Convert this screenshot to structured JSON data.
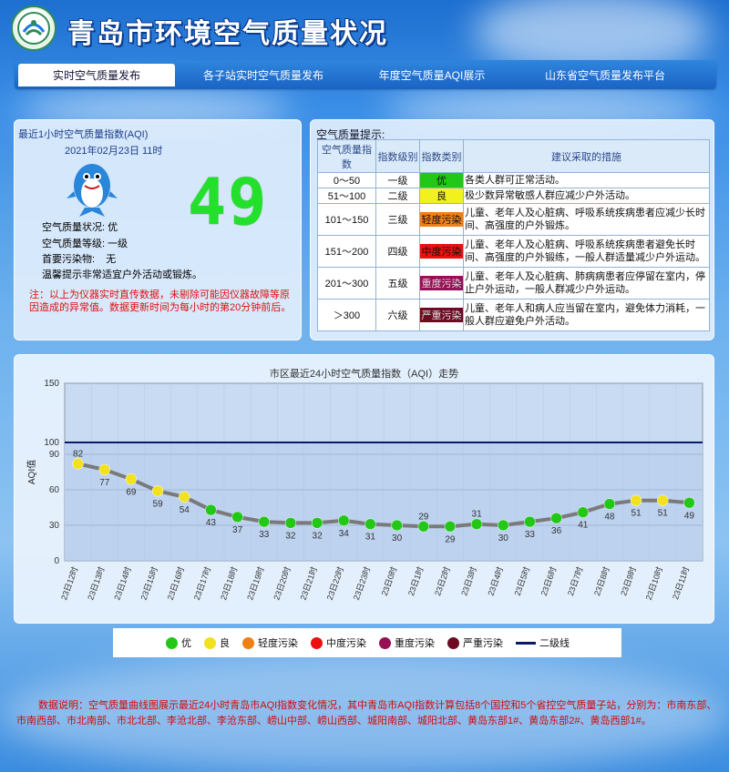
{
  "site": {
    "title": "青岛市环境空气质量状况"
  },
  "nav": {
    "tabs": [
      "实时空气质量发布",
      "各子站实时空气质量发布",
      "年度空气质量AQI展示",
      "山东省空气质量发布平台"
    ],
    "active_index": 0
  },
  "aqi": {
    "heading": "最近1小时空气质量指数(AQI)",
    "datetime": "2021年02月23日 11时",
    "value": "49",
    "status_line": "空气质量状况: 优",
    "grade_line": "空气质量等级: 一级",
    "pollutant_line": "首要污染物:    无",
    "advice_line": "温馨提示非常适宜户外活动或锻炼。",
    "note": "注：以上为仪器实时直传数据，未剔除可能因仪器故障等原因造成的异常值。数据更新时间为每小时的第20分钟前后。",
    "value_color": "#23e02a"
  },
  "tips": {
    "title": "空气质量提示:",
    "headers": [
      "空气质量指数",
      "指数级别",
      "指数类别",
      "建议采取的措施"
    ],
    "rows": [
      {
        "range": "0～50",
        "level": "一级",
        "category": "优",
        "color": "#22c718",
        "measure": "各类人群可正常活动。"
      },
      {
        "range": "51～100",
        "level": "二级",
        "category": "良",
        "color": "#f2f01e",
        "measure": "极少数异常敏感人群应减少户外活动。"
      },
      {
        "range": "101～150",
        "level": "三级",
        "category": "轻度污染",
        "color": "#f07f14",
        "measure": "儿童、老年人及心脏病、呼吸系统疾病患者应减少长时间、高强度的户外锻炼。"
      },
      {
        "range": "151～200",
        "level": "四级",
        "category": "中度污染",
        "color": "#ec1010",
        "measure": "儿童、老年人及心脏病、呼吸系统疾病患者避免长时间、高强度的户外锻练，一般人群适量减少户外运动。"
      },
      {
        "range": "201～300",
        "level": "五级",
        "category": "重度污染",
        "color": "#980f55",
        "measure": "儿童、老年人及心脏病、肺病病患者应停留在室内，停止户外运动，一般人群减少户外运动。"
      },
      {
        "range": "＞300",
        "level": "六级",
        "category": "严重污染",
        "color": "#6e0a22",
        "measure": "儿童、老年人和病人应当留在室内，避免体力消耗，一般人群应避免户外活动。"
      }
    ]
  },
  "chart_data": {
    "type": "line",
    "title": "市区最近24小时空气质量指数（AQI）走势",
    "ylabel": "AQI值",
    "ylim": [
      0,
      150
    ],
    "yticks": [
      0,
      30,
      60,
      90,
      100,
      150
    ],
    "reference_line": {
      "name": "二级线",
      "value": 100,
      "color": "#0a1a6a"
    },
    "categories": [
      "23日12时",
      "23日13时",
      "23日14时",
      "23日15时",
      "23日16时",
      "23日17时",
      "23日18时",
      "23日19时",
      "23日20时",
      "23日21时",
      "23日22时",
      "23日23时",
      "23日0时",
      "23日1时",
      "23日2时",
      "23日3时",
      "23日4时",
      "23日5时",
      "23日6时",
      "23日7时",
      "23日8时",
      "23日9时",
      "23日10时",
      "23日11时"
    ],
    "values": [
      82,
      77,
      69,
      59,
      54,
      43,
      37,
      33,
      32,
      32,
      34,
      31,
      30,
      29,
      29,
      31,
      30,
      33,
      36,
      41,
      48,
      51,
      51,
      49
    ],
    "point_colors": [
      "#f2e11e",
      "#f2e11e",
      "#f2e11e",
      "#f2e11e",
      "#f2e11e",
      "#22c718",
      "#22c718",
      "#22c718",
      "#22c718",
      "#22c718",
      "#22c718",
      "#22c718",
      "#22c718",
      "#22c718",
      "#22c718",
      "#22c718",
      "#22c718",
      "#22c718",
      "#22c718",
      "#22c718",
      "#22c718",
      "#f2e11e",
      "#f2e11e",
      "#22c718"
    ],
    "line_color": "#7a7a7a",
    "grid": true
  },
  "legend": {
    "items": [
      {
        "label": "优",
        "color": "#22c718"
      },
      {
        "label": "良",
        "color": "#f2e11e"
      },
      {
        "label": "轻度污染",
        "color": "#f07f14"
      },
      {
        "label": "中度污染",
        "color": "#ec1010"
      },
      {
        "label": "重度污染",
        "color": "#980f55"
      },
      {
        "label": "严重污染",
        "color": "#6e0a22"
      }
    ],
    "line_label": "二级线"
  },
  "footer": {
    "note": "数据说明：空气质量曲线图展示最近24小时青岛市AQI指数变化情况，其中青岛市AQI指数计算包括8个国控和5个省控空气质量子站，分别为：市南东部、市南西部、市北南部、市北北部、李沧北部、李沧东部、崂山中部、崂山西部、城阳南部、城阳北部、黄岛东部1#、黄岛东部2#、黄岛西部1#。"
  }
}
